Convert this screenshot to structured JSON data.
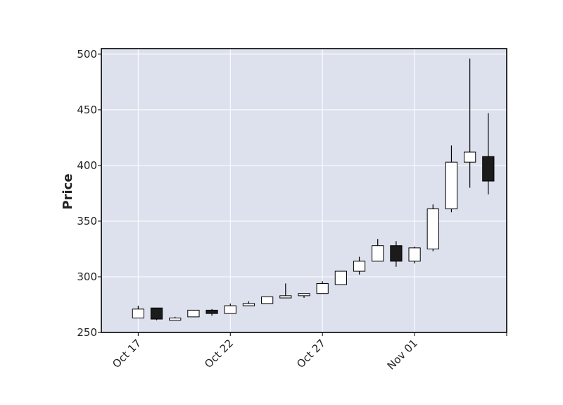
{
  "chart_data": {
    "type": "candlestick",
    "title": "",
    "xlabel": "",
    "ylabel": "Price",
    "ylim": [
      250,
      505
    ],
    "xlim": [
      "2023-10-15",
      "2023-11-06"
    ],
    "y_ticks": [
      250,
      300,
      350,
      400,
      450,
      500
    ],
    "x_ticks": [
      {
        "date": "2023-10-17",
        "label": "Oct 17"
      },
      {
        "date": "2023-10-22",
        "label": "Oct 22"
      },
      {
        "date": "2023-10-27",
        "label": "Oct 27"
      },
      {
        "date": "2023-11-01",
        "label": "Nov 01"
      },
      {
        "date": "2023-11-06",
        "label": ""
      }
    ],
    "grid": true,
    "colors": {
      "plot_background": "#dde1ee",
      "grid": "#ffffff",
      "up_fill": "#ffffff",
      "down_fill": "#1b1b1b",
      "edge": "#000000"
    },
    "candles": [
      {
        "date": "2023-10-17",
        "open": 263,
        "high": 274,
        "low": 263,
        "close": 271
      },
      {
        "date": "2023-10-18",
        "open": 272,
        "high": 272,
        "low": 261,
        "close": 262
      },
      {
        "date": "2023-10-19",
        "open": 261,
        "high": 264,
        "low": 261,
        "close": 263
      },
      {
        "date": "2023-10-20",
        "open": 264,
        "high": 270,
        "low": 264,
        "close": 270
      },
      {
        "date": "2023-10-21",
        "open": 270,
        "high": 271,
        "low": 265,
        "close": 267
      },
      {
        "date": "2023-10-22",
        "open": 267,
        "high": 276,
        "low": 267,
        "close": 274
      },
      {
        "date": "2023-10-23",
        "open": 274,
        "high": 278,
        "low": 274,
        "close": 276
      },
      {
        "date": "2023-10-24",
        "open": 276,
        "high": 282,
        "low": 276,
        "close": 282
      },
      {
        "date": "2023-10-25",
        "open": 281,
        "high": 294,
        "low": 281,
        "close": 283
      },
      {
        "date": "2023-10-26",
        "open": 283,
        "high": 285,
        "low": 281,
        "close": 285
      },
      {
        "date": "2023-10-27",
        "open": 285,
        "high": 296,
        "low": 285,
        "close": 294
      },
      {
        "date": "2023-10-28",
        "open": 293,
        "high": 305,
        "low": 293,
        "close": 305
      },
      {
        "date": "2023-10-29",
        "open": 305,
        "high": 318,
        "low": 302,
        "close": 314
      },
      {
        "date": "2023-10-30",
        "open": 314,
        "high": 334,
        "low": 314,
        "close": 328
      },
      {
        "date": "2023-10-31",
        "open": 328,
        "high": 332,
        "low": 309,
        "close": 314
      },
      {
        "date": "2023-11-01",
        "open": 314,
        "high": 327,
        "low": 312,
        "close": 326
      },
      {
        "date": "2023-11-02",
        "open": 325,
        "high": 365,
        "low": 323,
        "close": 361
      },
      {
        "date": "2023-11-03",
        "open": 361,
        "high": 418,
        "low": 358,
        "close": 403
      },
      {
        "date": "2023-11-04",
        "open": 403,
        "high": 496,
        "low": 380,
        "close": 412
      },
      {
        "date": "2023-11-05",
        "open": 408,
        "high": 447,
        "low": 374,
        "close": 386
      }
    ]
  }
}
